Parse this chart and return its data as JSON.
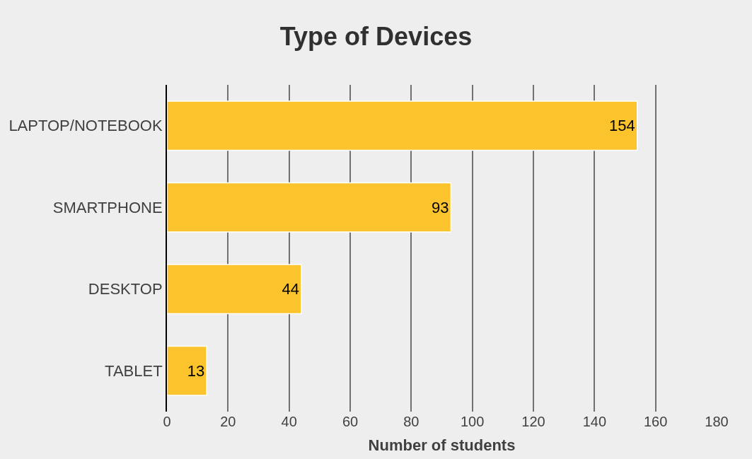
{
  "chart_data": {
    "type": "bar",
    "orientation": "horizontal",
    "title": "Type of Devices",
    "xlabel": "Number of students",
    "categories": [
      "LAPTOP/NOTEBOOK",
      "SMARTPHONE",
      "DESKTOP",
      "TABLET"
    ],
    "values": [
      154,
      93,
      44,
      13
    ],
    "color": "#fcc42c",
    "xlim": [
      0,
      180
    ],
    "xticks": [
      0,
      20,
      40,
      60,
      80,
      100,
      120,
      140,
      160,
      180
    ],
    "grid": "x",
    "data_labels": true,
    "legend": false
  }
}
